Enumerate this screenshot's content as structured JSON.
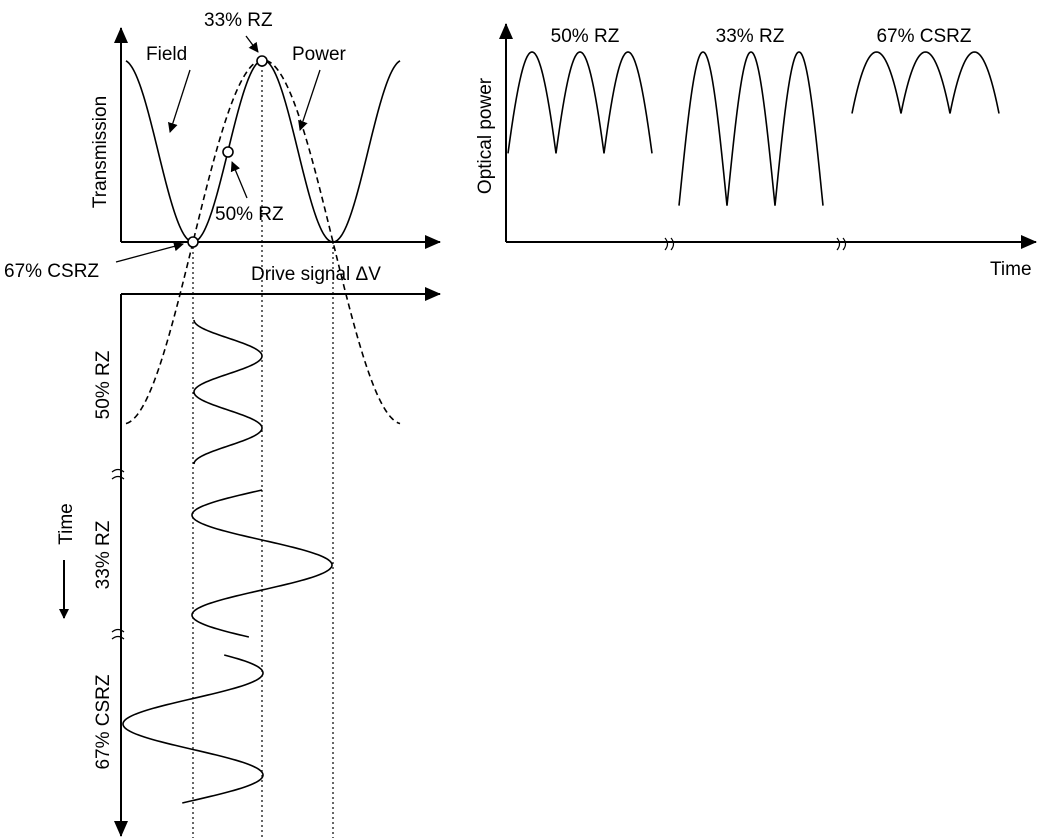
{
  "transfer_plot": {
    "y_axis_label": "Transmission",
    "x_axis_label": "Drive signal ΔV",
    "curve_labels": {
      "field": "Field",
      "power": "Power"
    },
    "operating_points": [
      "33% RZ",
      "50% RZ",
      "67% CSRZ"
    ]
  },
  "drive_plot": {
    "time_label": "Time",
    "segments": [
      "50% RZ",
      "33% RZ",
      "67% CSRZ"
    ]
  },
  "optical_plot": {
    "y_axis_label": "Optical power",
    "x_axis_label": "Time",
    "segments": [
      "50% RZ",
      "33% RZ",
      "67% CSRZ"
    ]
  }
}
